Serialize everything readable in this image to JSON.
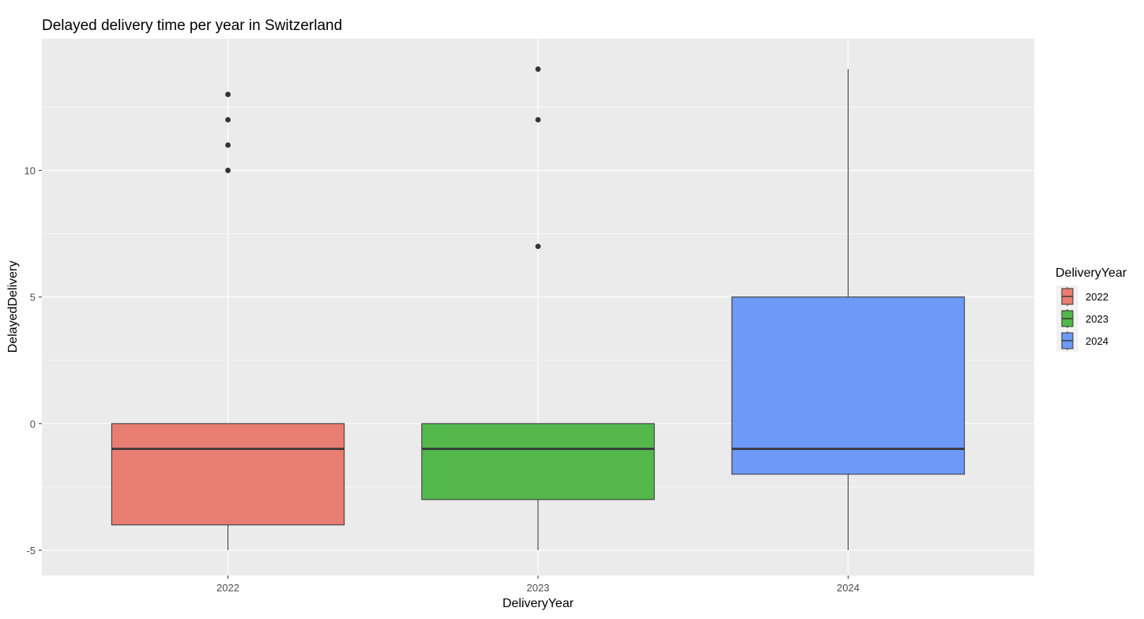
{
  "chart_data": {
    "type": "boxplot",
    "title": "Delayed delivery time per year in Switzerland",
    "xlabel": "DeliveryYear",
    "ylabel": "DelayedDelivery",
    "ylim": [
      -6,
      15.2
    ],
    "yticks": [
      -5,
      0,
      5,
      10
    ],
    "y_tick_labels": [
      "-5",
      "0",
      "5",
      "10"
    ],
    "grid": true,
    "legend": {
      "title": "DeliveryYear",
      "position": "right"
    },
    "categories": [
      "2022",
      "2023",
      "2024"
    ],
    "series": [
      {
        "name": "2022",
        "color": "#E87D72",
        "whisker_low": -5,
        "q1": -4,
        "median": -1,
        "q3": 0,
        "whisker_high": 0,
        "outliers": [
          10,
          11,
          12,
          13
        ]
      },
      {
        "name": "2023",
        "color": "#53B74C",
        "whisker_low": -5,
        "q1": -3,
        "median": -1,
        "q3": 0,
        "whisker_high": 0,
        "outliers": [
          7,
          12,
          14
        ]
      },
      {
        "name": "2024",
        "color": "#6D9AF8",
        "whisker_low": -5,
        "q1": -2,
        "median": -1,
        "q3": 5,
        "whisker_high": 14,
        "outliers": []
      }
    ]
  }
}
